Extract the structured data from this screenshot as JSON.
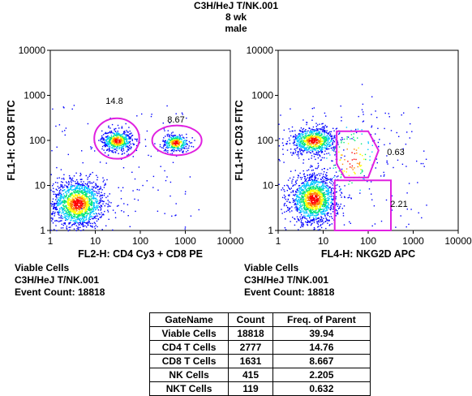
{
  "header": {
    "line1": "C3H/HeJ T/NK.001",
    "line2": "8 wk",
    "line3": "male"
  },
  "chart_data": [
    {
      "type": "scatter",
      "subtype": "flow-cytometry-density-dot-plot",
      "xlabel": "FL2-H: CD4 Cy3 + CD8 PE",
      "ylabel": "FL1-H: CD3 FITC",
      "x_scale": "log",
      "y_scale": "log",
      "xlim": [
        1,
        10000
      ],
      "ylim": [
        1,
        10000
      ],
      "x_ticks": [
        "1",
        "10",
        "100",
        "1000",
        "10000"
      ],
      "y_ticks": [
        "1",
        "10",
        "100",
        "1000",
        "10000"
      ],
      "populations": [
        {
          "center": [
            4,
            4
          ],
          "spread": [
            0.3,
            0.27
          ],
          "weight": 0.55
        },
        {
          "center": [
            30,
            100
          ],
          "spread": [
            0.17,
            0.12
          ],
          "weight": 0.2
        },
        {
          "center": [
            600,
            90
          ],
          "spread": [
            0.15,
            0.1
          ],
          "weight": 0.13
        }
      ],
      "gates": [
        {
          "label": "14.8",
          "shape": "ellipse",
          "center": [
            30,
            110
          ],
          "log_radius": [
            0.5,
            0.45
          ]
        },
        {
          "label": "8.67",
          "shape": "ellipse",
          "center": [
            650,
            100
          ],
          "log_radius": [
            0.55,
            0.33
          ]
        }
      ],
      "footer": [
        "Viable Cells",
        "C3H/HeJ T/NK.001",
        "Event Count: 18818"
      ]
    },
    {
      "type": "scatter",
      "subtype": "flow-cytometry-density-dot-plot",
      "xlabel": "FL4-H: NKG2D APC",
      "ylabel": "FL1-H: CD3 FITC",
      "x_scale": "log",
      "y_scale": "log",
      "xlim": [
        1,
        10000
      ],
      "ylim": [
        1,
        10000
      ],
      "x_ticks": [
        "1",
        "10",
        "100",
        "1000",
        "10000"
      ],
      "y_ticks": [
        "1",
        "10",
        "100",
        "1000",
        "10000"
      ],
      "populations": [
        {
          "center": [
            6,
            5
          ],
          "spread": [
            0.26,
            0.27
          ],
          "weight": 0.55
        },
        {
          "center": [
            6,
            100
          ],
          "spread": [
            0.26,
            0.15
          ],
          "weight": 0.3
        },
        {
          "center": [
            40,
            40
          ],
          "spread": [
            0.35,
            0.5
          ],
          "weight": 0.06
        }
      ],
      "gates": [
        {
          "label": "0.63",
          "shape": "polygon",
          "points": [
            [
              20,
              160
            ],
            [
              100,
              160
            ],
            [
              170,
              60
            ],
            [
              100,
              15
            ],
            [
              30,
              15
            ],
            [
              20,
              30
            ]
          ]
        },
        {
          "label": "2.21",
          "shape": "polygon",
          "points": [
            [
              18,
              1
            ],
            [
              18,
              13
            ],
            [
              320,
              13
            ],
            [
              320,
              1
            ]
          ]
        }
      ],
      "footer": [
        "Viable Cells",
        "C3H/HeJ T/NK.001",
        "Event Count: 18818"
      ]
    }
  ],
  "stats_table": {
    "columns": [
      "GateName",
      "Count",
      "Freq. of Parent"
    ],
    "rows": [
      [
        "Viable Cells",
        "18818",
        "39.94"
      ],
      [
        "CD4 T Cells",
        "2777",
        "14.76"
      ],
      [
        "CD8 T Cells",
        "1631",
        "8.667"
      ],
      [
        "NK Cells",
        "415",
        "2.205"
      ],
      [
        "NKT Cells",
        "119",
        "0.632"
      ]
    ]
  },
  "colors": {
    "gate": "#e020e0",
    "density": [
      "#0000ff",
      "#00c8ff",
      "#00e676",
      "#ffff00",
      "#ff8000",
      "#ff0000"
    ]
  }
}
